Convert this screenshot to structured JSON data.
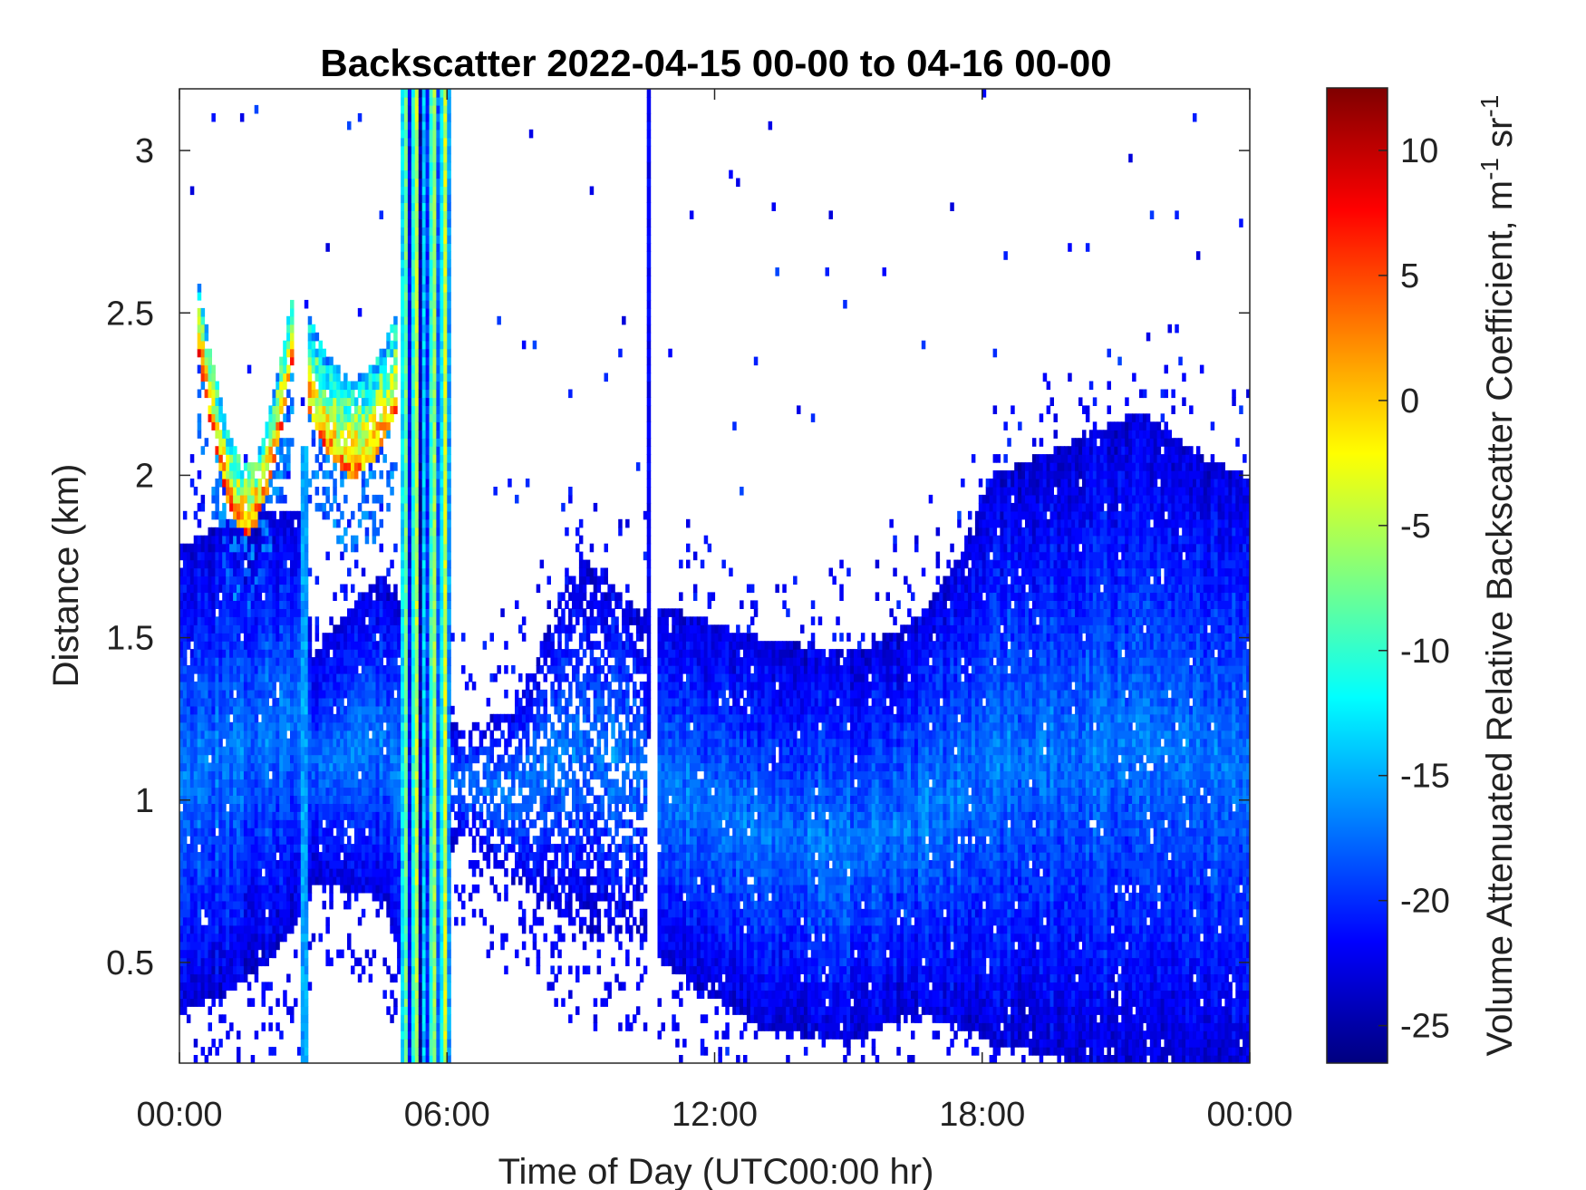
{
  "chart_data": {
    "type": "heatmap",
    "title": "Backscatter 2022-04-15 00-00 to 04-16 00-00",
    "xlabel": "Time of Day (UTC00:00 hr)",
    "ylabel": "Distance (km)",
    "colorbar_label": "Volume Attenuated Relative Backscatter Coefficient, m",
    "colorbar_units": {
      "sup1": "-1",
      "mid": " sr",
      "sup2": "-1"
    },
    "x_ticks": [
      {
        "hour": 0,
        "label": "00:00"
      },
      {
        "hour": 6,
        "label": "06:00"
      },
      {
        "hour": 12,
        "label": "12:00"
      },
      {
        "hour": 18,
        "label": "18:00"
      },
      {
        "hour": 24,
        "label": "00:00"
      }
    ],
    "y_ticks": [
      {
        "value": 0.5,
        "label": "0.5"
      },
      {
        "value": 1,
        "label": "1"
      },
      {
        "value": 1.5,
        "label": "1.5"
      },
      {
        "value": 2,
        "label": "2"
      },
      {
        "value": 2.5,
        "label": "2.5"
      },
      {
        "value": 3,
        "label": "3"
      }
    ],
    "colorbar_ticks": [
      {
        "value": 10,
        "label": "10"
      },
      {
        "value": 5,
        "label": "5"
      },
      {
        "value": 0,
        "label": "0"
      },
      {
        "value": -5,
        "label": "-5"
      },
      {
        "value": -10,
        "label": "-10"
      },
      {
        "value": -15,
        "label": "-15"
      },
      {
        "value": -20,
        "label": "-20"
      },
      {
        "value": -25,
        "label": "-25"
      }
    ],
    "xlim": [
      0,
      24
    ],
    "ylim": [
      0.19,
      3.19
    ],
    "clim": [
      -26.5,
      12.5
    ],
    "colormap": "jet",
    "grid": false,
    "features": {
      "aerosol_layer": [
        {
          "hour": 0.0,
          "bottom": 0.35,
          "top": 1.78
        },
        {
          "hour": 1.0,
          "bottom": 0.4,
          "top": 1.85
        },
        {
          "hour": 2.0,
          "bottom": 0.5,
          "top": 1.9
        },
        {
          "hour": 2.7,
          "bottom": 0.65,
          "top": 1.9
        },
        {
          "hour": 3.0,
          "bottom": 0.75,
          "top": 1.45
        },
        {
          "hour": 4.5,
          "bottom": 0.7,
          "top": 1.7
        },
        {
          "hour": 5.0,
          "bottom": 0.5,
          "top": 1.6
        },
        {
          "hour": 6.3,
          "bottom": 0.9,
          "top": 1.2
        },
        {
          "hour": 7.5,
          "bottom": 0.75,
          "top": 1.3
        },
        {
          "hour": 8.0,
          "bottom": 0.7,
          "top": 1.45
        },
        {
          "hour": 9.0,
          "bottom": 0.6,
          "top": 1.75
        },
        {
          "hour": 10.2,
          "bottom": 0.6,
          "top": 1.6
        },
        {
          "hour": 10.8,
          "bottom": 0.5,
          "top": 1.6
        },
        {
          "hour": 13.0,
          "bottom": 0.3,
          "top": 1.5
        },
        {
          "hour": 15.0,
          "bottom": 0.25,
          "top": 1.45
        },
        {
          "hour": 16.5,
          "bottom": 0.35,
          "top": 1.55
        },
        {
          "hour": 17.5,
          "bottom": 0.3,
          "top": 1.75
        },
        {
          "hour": 18.2,
          "bottom": 0.25,
          "top": 2.0
        },
        {
          "hour": 20.0,
          "bottom": 0.2,
          "top": 2.1
        },
        {
          "hour": 21.5,
          "bottom": 0.2,
          "top": 2.2
        },
        {
          "hour": 23.0,
          "bottom": 0.2,
          "top": 2.05
        },
        {
          "hour": 24.0,
          "bottom": 0.2,
          "top": 2.0
        }
      ],
      "cloud_layers": [
        {
          "start": 0.4,
          "end": 2.6,
          "base_min": 1.82,
          "base_edge": 2.4,
          "thickness": 0.22,
          "value": 5
        },
        {
          "start": 2.9,
          "end": 4.9,
          "base_min": 2.0,
          "base_edge": 2.2,
          "thickness": 0.3,
          "value": 3
        }
      ],
      "precipitation_band": {
        "start": 5.0,
        "end": 6.05
      },
      "gap_start": 10.5,
      "gap_end": 10.75
    }
  }
}
